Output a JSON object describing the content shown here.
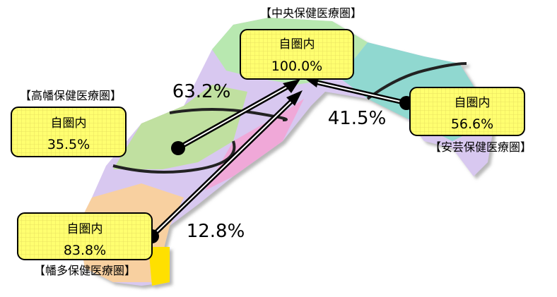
{
  "regions": [
    {
      "name": "【中央保健医療圏】",
      "label": "自圏内",
      "value": "100.0%"
    },
    {
      "name": "【高幡保健医療圏】",
      "label": "自圏内",
      "value": "35.5%"
    },
    {
      "name": "【安芸保健医療圏】",
      "label": "自圏内",
      "value": "56.6%"
    },
    {
      "name": "【幡多保健医療圏】",
      "label": "自圏内",
      "value": "83.8%"
    }
  ],
  "flows": [
    {
      "label": "63.2%"
    },
    {
      "label": "41.5%"
    },
    {
      "label": "12.8%"
    }
  ]
}
